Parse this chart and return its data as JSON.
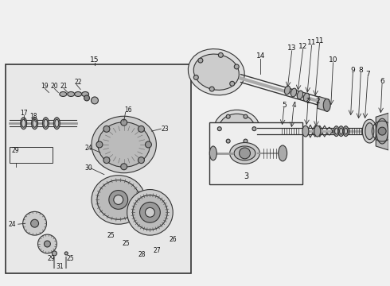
{
  "bg_color": "#f0f0f0",
  "line_color": "#333333",
  "text_color": "#111111",
  "fig_width": 4.9,
  "fig_height": 3.6,
  "dpi": 100
}
